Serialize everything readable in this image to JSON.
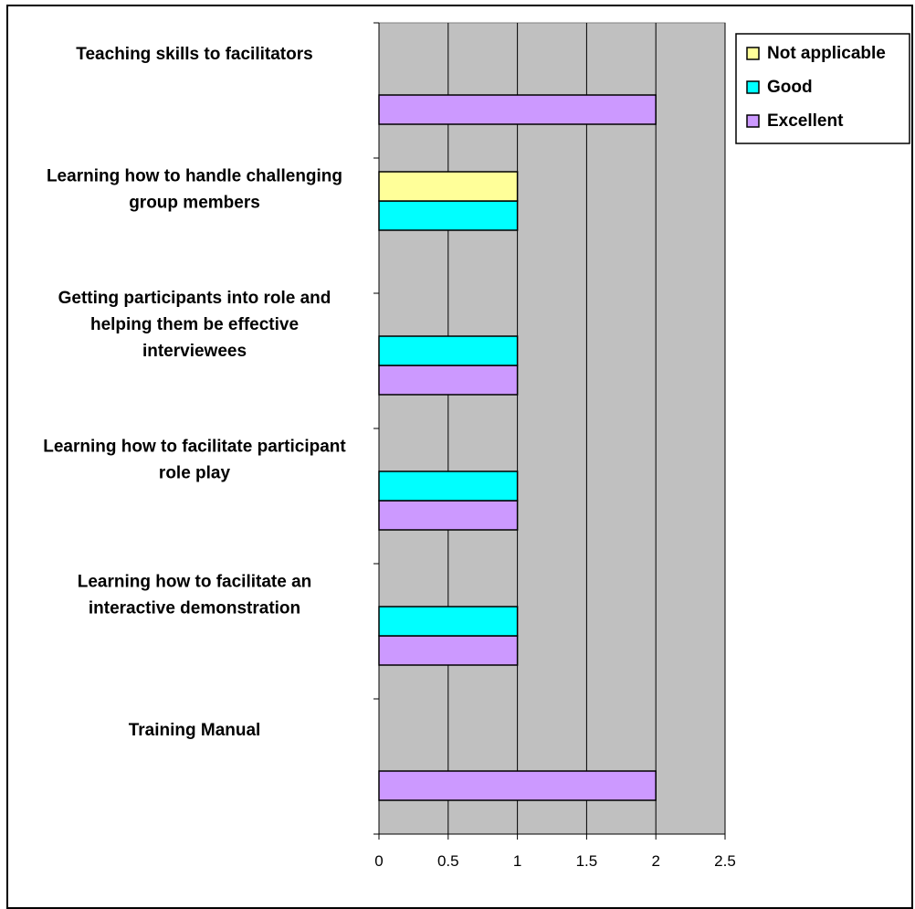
{
  "chart_data": {
    "type": "bar",
    "orientation": "horizontal",
    "categories": [
      "Training Manual",
      "Learning how to facilitate an interactive demonstration",
      "Learning how to facilitate participant role play",
      "Getting participants into role and helping them be effective interviewees",
      "Learning how to handle challenging group members",
      "Teaching skills to facilitators"
    ],
    "category_lines": [
      [
        "Training Manual"
      ],
      [
        "Learning how to facilitate an",
        "interactive demonstration"
      ],
      [
        "Learning how to facilitate participant",
        "role play"
      ],
      [
        "Getting participants into role and",
        "helping them be effective",
        "interviewees"
      ],
      [
        "Learning how to handle challenging",
        "group members"
      ],
      [
        "Teaching skills to facilitators"
      ]
    ],
    "series": [
      {
        "name": "Excellent",
        "color": "#cc99ff",
        "values": [
          2,
          1,
          1,
          1,
          0,
          2
        ]
      },
      {
        "name": "Good",
        "color": "#00ffff",
        "values": [
          0,
          1,
          1,
          1,
          1,
          0
        ]
      },
      {
        "name": "Not applicable",
        "color": "#ffff99",
        "values": [
          0,
          0,
          0,
          0,
          1,
          0
        ]
      }
    ],
    "xlim": [
      0,
      2.5
    ],
    "xticks": [
      "0",
      "0.5",
      "1",
      "1.5",
      "2",
      "2.5"
    ],
    "xtick_values": [
      0,
      0.5,
      1,
      1.5,
      2,
      2.5
    ],
    "grid": true,
    "plot_background": "#c0c0c0",
    "legend_position": "top-right",
    "legend_order": [
      "Not applicable",
      "Good",
      "Excellent"
    ]
  }
}
